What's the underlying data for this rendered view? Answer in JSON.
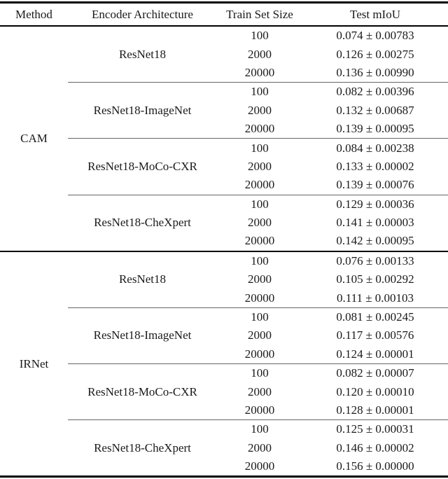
{
  "colors": {
    "background": "#ffffff",
    "text": "#1a1a1a",
    "heavy_rule": "#000000",
    "group_rule": "#666666"
  },
  "table": {
    "headers": [
      "Method",
      "Encoder Architecture",
      "Train Set Size",
      "Test mIoU"
    ],
    "sections": [
      {
        "method": "CAM",
        "groups": [
          {
            "encoder": "ResNet18",
            "rows": [
              {
                "size": "100",
                "miou": "0.074 ± 0.00783"
              },
              {
                "size": "2000",
                "miou": "0.126 ± 0.00275"
              },
              {
                "size": "20000",
                "miou": "0.136 ± 0.00990"
              }
            ]
          },
          {
            "encoder": "ResNet18-ImageNet",
            "rows": [
              {
                "size": "100",
                "miou": "0.082 ± 0.00396"
              },
              {
                "size": "2000",
                "miou": "0.132 ± 0.00687"
              },
              {
                "size": "20000",
                "miou": "0.139 ± 0.00095"
              }
            ]
          },
          {
            "encoder": "ResNet18-MoCo-CXR",
            "rows": [
              {
                "size": "100",
                "miou": "0.084 ± 0.00238"
              },
              {
                "size": "2000",
                "miou": "0.133 ± 0.00002"
              },
              {
                "size": "20000",
                "miou": "0.139 ± 0.00076"
              }
            ]
          },
          {
            "encoder": "ResNet18-CheXpert",
            "rows": [
              {
                "size": "100",
                "miou": "0.129 ± 0.00036"
              },
              {
                "size": "2000",
                "miou": "0.141 ± 0.00003"
              },
              {
                "size": "20000",
                "miou": "0.142 ± 0.00095"
              }
            ]
          }
        ]
      },
      {
        "method": "IRNet",
        "groups": [
          {
            "encoder": "ResNet18",
            "rows": [
              {
                "size": "100",
                "miou": "0.076 ± 0.00133"
              },
              {
                "size": "2000",
                "miou": "0.105 ± 0.00292"
              },
              {
                "size": "20000",
                "miou": "0.111 ± 0.00103"
              }
            ]
          },
          {
            "encoder": "ResNet18-ImageNet",
            "rows": [
              {
                "size": "100",
                "miou": "0.081 ± 0.00245"
              },
              {
                "size": "2000",
                "miou": "0.117 ± 0.00576"
              },
              {
                "size": "20000",
                "miou": "0.124 ± 0.00001"
              }
            ]
          },
          {
            "encoder": "ResNet18-MoCo-CXR",
            "rows": [
              {
                "size": "100",
                "miou": "0.082 ± 0.00007"
              },
              {
                "size": "2000",
                "miou": "0.120 ± 0.00010"
              },
              {
                "size": "20000",
                "miou": "0.128 ± 0.00001"
              }
            ]
          },
          {
            "encoder": "ResNet18-CheXpert",
            "rows": [
              {
                "size": "100",
                "miou": "0.125 ± 0.00031"
              },
              {
                "size": "2000",
                "miou": "0.146 ± 0.00002"
              },
              {
                "size": "20000",
                "miou": "0.156 ± 0.00000"
              }
            ]
          }
        ]
      }
    ]
  }
}
